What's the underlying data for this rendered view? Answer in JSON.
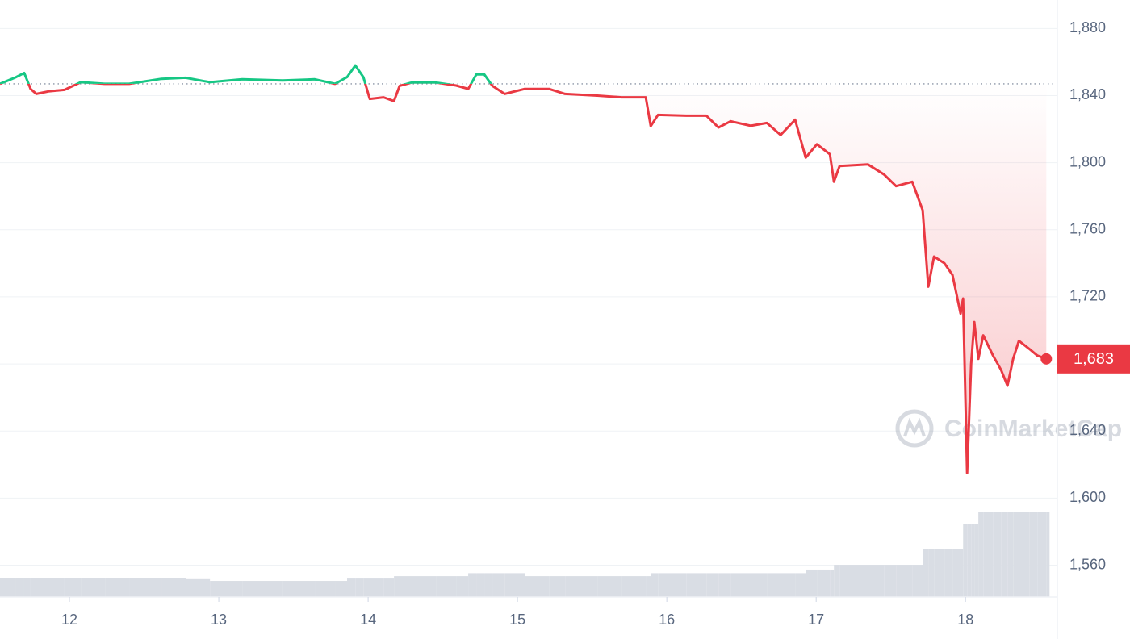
{
  "chart_data": {
    "type": "line",
    "watermark": "CoinMarketCap",
    "x": [
      11.535,
      11.589,
      11.643,
      11.697,
      11.74,
      11.778,
      11.859,
      11.967,
      12.076,
      12.238,
      12.4,
      12.616,
      12.778,
      12.941,
      13.157,
      13.427,
      13.643,
      13.778,
      13.859,
      13.914,
      13.968,
      14.011,
      14.103,
      14.173,
      14.211,
      14.292,
      14.454,
      14.589,
      14.67,
      14.724,
      14.778,
      14.832,
      14.914,
      15.049,
      15.211,
      15.319,
      15.535,
      15.697,
      15.859,
      15.892,
      15.941,
      16.13,
      16.265,
      16.346,
      16.427,
      16.562,
      16.67,
      16.762,
      16.859,
      16.93,
      17.005,
      17.092,
      17.119,
      17.157,
      17.346,
      17.454,
      17.535,
      17.643,
      17.713,
      17.751,
      17.789,
      17.859,
      17.913,
      17.967,
      17.984,
      18.011,
      18.038,
      18.059,
      18.086,
      18.119,
      18.184,
      18.238,
      18.281,
      18.319,
      18.357,
      18.427,
      18.481,
      18.541
    ],
    "series": [
      {
        "name": "Price",
        "color": "#ea3943",
        "color_above": "#16c784",
        "values": [
          1847,
          1849,
          1851,
          1853.5,
          1844,
          1841,
          1842.5,
          1843.4,
          1848,
          1847,
          1847,
          1850,
          1850.6,
          1848,
          1849.7,
          1849,
          1849.7,
          1847,
          1851,
          1858,
          1851,
          1838,
          1839,
          1836.7,
          1845.8,
          1847.8,
          1847.8,
          1846,
          1844,
          1852.6,
          1852.6,
          1845.8,
          1841,
          1844,
          1844,
          1841,
          1840,
          1839,
          1839,
          1821.8,
          1828.5,
          1828,
          1828,
          1821,
          1824.7,
          1822,
          1823.7,
          1816.5,
          1825.6,
          1803,
          1811,
          1805,
          1788.6,
          1798,
          1799,
          1793,
          1786,
          1788.6,
          1771.7,
          1726,
          1744,
          1740,
          1733,
          1710,
          1719,
          1615,
          1680,
          1705,
          1683,
          1697,
          1685,
          1676.5,
          1667,
          1683,
          1693.8,
          1689,
          1685,
          1683
        ]
      },
      {
        "name": "Volume",
        "color": "#d9dde4",
        "axis": "y2",
        "values": [
          3.2,
          3.2,
          3.2,
          3.2,
          3.2,
          3.2,
          3.2,
          3.2,
          3.2,
          3.2,
          3.2,
          3.2,
          3.0,
          2.7,
          2.7,
          2.7,
          2.7,
          2.7,
          3.1,
          3.1,
          3.1,
          3.1,
          3.1,
          3.5,
          3.5,
          3.5,
          3.5,
          3.5,
          4.0,
          4.0,
          4.0,
          4.0,
          4.0,
          3.5,
          3.5,
          3.5,
          3.5,
          3.5,
          3.5,
          4.0,
          4.0,
          4.0,
          4.0,
          4.0,
          4.0,
          4.0,
          4.0,
          4.0,
          4.0,
          4.6,
          4.6,
          4.6,
          5.4,
          5.4,
          5.4,
          5.4,
          5.4,
          5.4,
          8.1,
          8.1,
          8.1,
          8.1,
          8.1,
          8.1,
          12.2,
          12.2,
          12.2,
          12.2,
          14.2,
          14.2,
          14.2,
          14.2,
          14.2,
          14.2,
          14.2,
          14.2,
          14.2,
          14.2
        ]
      }
    ],
    "reference_line": 1847,
    "current_price": {
      "value": 1683,
      "label": "1,683"
    },
    "xlim": [
      11.535,
      18.615
    ],
    "xticks": [
      12,
      13,
      14,
      15,
      16,
      17,
      18
    ],
    "ylim": [
      1541,
      1897
    ],
    "yticks": [
      {
        "value": 1560,
        "label": "1,560"
      },
      {
        "value": 1600,
        "label": "1,600"
      },
      {
        "value": 1640,
        "label": "1,640"
      },
      {
        "value": 1680,
        "label": "1,680"
      },
      {
        "value": 1720,
        "label": "1,720"
      },
      {
        "value": 1760,
        "label": "1,760"
      },
      {
        "value": 1800,
        "label": "1,800"
      },
      {
        "value": 1840,
        "label": "1,840"
      },
      {
        "value": 1880,
        "label": "1,880"
      }
    ],
    "y2lim": [
      0,
      100
    ],
    "grid": true
  }
}
